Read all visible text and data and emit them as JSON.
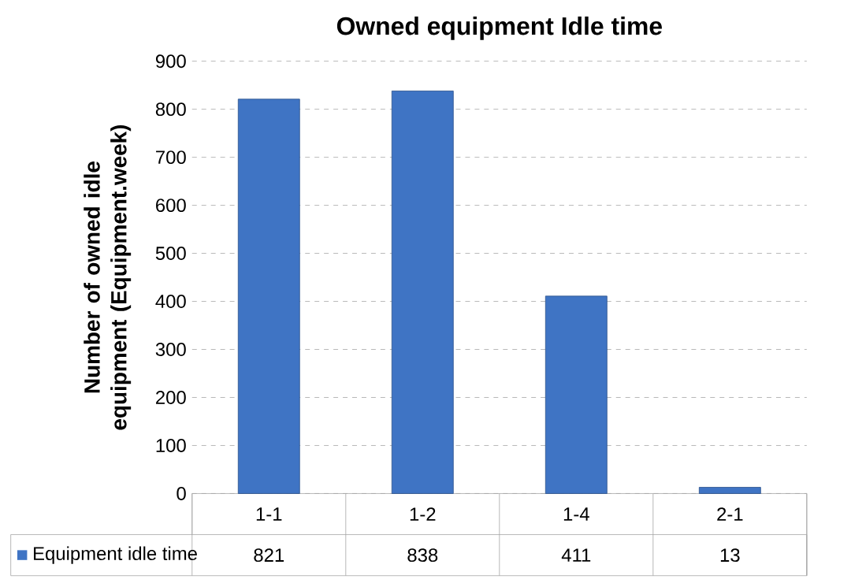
{
  "chart_data": {
    "type": "bar",
    "title": "Owned equipment Idle time",
    "ylabel": "Number of owned idle equipment (Equipment.week)",
    "categories": [
      "1-1",
      "1-2",
      "1-4",
      "2-1"
    ],
    "series": [
      {
        "name": "Equipment idle time",
        "color": "#3f74c4",
        "values": [
          821,
          838,
          411,
          13
        ]
      }
    ],
    "ylim": [
      0,
      900
    ],
    "yticks": [
      0,
      100,
      200,
      300,
      400,
      500,
      600,
      700,
      800,
      900
    ],
    "grid": "y",
    "legend": "bottom",
    "data_labels": true
  }
}
